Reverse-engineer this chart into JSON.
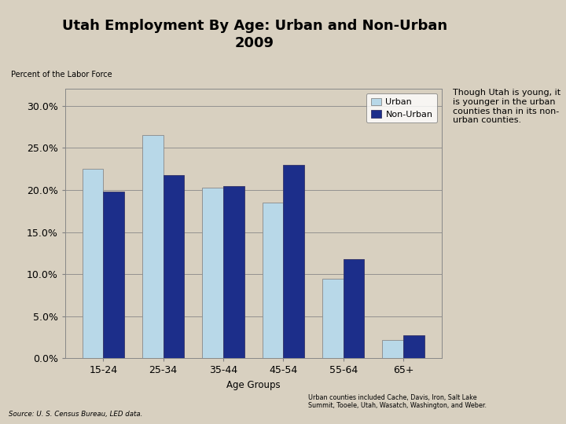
{
  "title_line1": "Utah Employment By Age: Urban and Non-Urban",
  "title_line2": "2009",
  "ylabel": "Percent of the Labor Force",
  "xlabel": "Age Groups",
  "categories": [
    "15-24",
    "25-34",
    "35-44",
    "45-54",
    "55-64",
    "65+"
  ],
  "urban": [
    22.5,
    26.5,
    20.3,
    18.5,
    9.5,
    2.2
  ],
  "nonurban": [
    19.8,
    21.8,
    20.5,
    23.0,
    11.8,
    2.7
  ],
  "urban_color": "#B8D8E8",
  "nonurban_color": "#1C2E8A",
  "background_color": "#D8D0C0",
  "plot_bg_color": "#D8D0C0",
  "ylim": [
    0,
    32
  ],
  "yticks": [
    0.0,
    5.0,
    10.0,
    15.0,
    20.0,
    25.0,
    30.0
  ],
  "annotation_text": "Though Utah is young, it\nis younger in the urban\ncounties than in its non-\nurban counties.",
  "source_text": "Source: U. S. Census Bureau, LED data.",
  "footnote_text": "Urban counties included Cache, Davis, Iron, Salt Lake\nSummit, Tooele, Utah, Wasatch, Washington, and Weber.",
  "title_fontsize": 13,
  "label_fontsize": 7.5,
  "tick_fontsize": 9,
  "bar_width": 0.35
}
